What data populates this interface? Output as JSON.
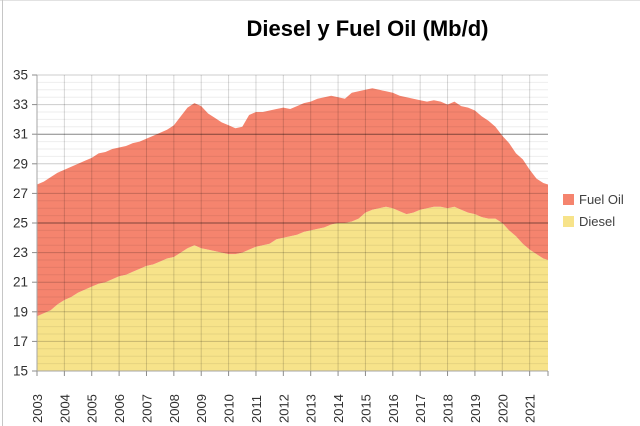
{
  "title": "Diesel y Fuel Oil (Mb/d)",
  "legend": {
    "items": [
      {
        "label": "Fuel Oil",
        "color": "#F5846E"
      },
      {
        "label": "Diesel",
        "color": "#F7E38A"
      }
    ]
  },
  "chart_data": {
    "type": "area",
    "stacked": true,
    "title": "Diesel y Fuel Oil (Mb/d)",
    "unit": "Mb/d",
    "legend_position": "right",
    "grid": true,
    "x": [
      2003.0,
      2003.25,
      2003.5,
      2003.75,
      2004.0,
      2004.25,
      2004.5,
      2004.75,
      2005.0,
      2005.25,
      2005.5,
      2005.75,
      2006.0,
      2006.25,
      2006.5,
      2006.75,
      2007.0,
      2007.25,
      2007.5,
      2007.75,
      2008.0,
      2008.25,
      2008.5,
      2008.75,
      2009.0,
      2009.25,
      2009.5,
      2009.75,
      2010.0,
      2010.25,
      2010.5,
      2010.75,
      2011.0,
      2011.25,
      2011.5,
      2011.75,
      2012.0,
      2012.25,
      2012.5,
      2012.75,
      2013.0,
      2013.25,
      2013.5,
      2013.75,
      2014.0,
      2014.25,
      2014.5,
      2014.75,
      2015.0,
      2015.25,
      2015.5,
      2015.75,
      2016.0,
      2016.25,
      2016.5,
      2016.75,
      2017.0,
      2017.25,
      2017.5,
      2017.75,
      2018.0,
      2018.25,
      2018.5,
      2018.75,
      2019.0,
      2019.25,
      2019.5,
      2019.75,
      2020.0,
      2020.25,
      2020.5,
      2020.75,
      2021.0,
      2021.25,
      2021.5,
      2021.67
    ],
    "series": [
      {
        "name": "Diesel",
        "color": "#F7E38A",
        "values": [
          18.7,
          18.9,
          19.1,
          19.5,
          19.8,
          20.0,
          20.3,
          20.5,
          20.7,
          20.9,
          21.0,
          21.2,
          21.4,
          21.5,
          21.7,
          21.9,
          22.1,
          22.2,
          22.4,
          22.6,
          22.7,
          23.0,
          23.3,
          23.5,
          23.3,
          23.2,
          23.1,
          23.0,
          22.9,
          22.9,
          23.0,
          23.2,
          23.4,
          23.5,
          23.6,
          23.9,
          24.0,
          24.1,
          24.2,
          24.4,
          24.5,
          24.6,
          24.7,
          24.9,
          25.0,
          25.0,
          25.1,
          25.3,
          25.7,
          25.9,
          26.0,
          26.1,
          26.0,
          25.8,
          25.6,
          25.7,
          25.9,
          26.0,
          26.1,
          26.1,
          26.0,
          26.1,
          25.9,
          25.7,
          25.6,
          25.4,
          25.3,
          25.3,
          25.0,
          24.5,
          24.1,
          23.6,
          23.2,
          22.9,
          22.6,
          22.5
        ]
      },
      {
        "name": "Fuel Oil",
        "color": "#F5846E",
        "values": [
          8.9,
          8.9,
          9.0,
          8.9,
          8.8,
          8.8,
          8.7,
          8.7,
          8.7,
          8.8,
          8.8,
          8.8,
          8.7,
          8.7,
          8.7,
          8.6,
          8.6,
          8.7,
          8.7,
          8.7,
          8.9,
          9.2,
          9.5,
          9.6,
          9.6,
          9.2,
          9.0,
          8.8,
          8.7,
          8.5,
          8.5,
          9.1,
          9.1,
          9.0,
          9.0,
          8.8,
          8.8,
          8.6,
          8.7,
          8.7,
          8.7,
          8.8,
          8.8,
          8.7,
          8.5,
          8.4,
          8.7,
          8.6,
          8.3,
          8.2,
          8.0,
          7.8,
          7.8,
          7.8,
          7.9,
          7.7,
          7.4,
          7.2,
          7.2,
          7.1,
          7.0,
          7.1,
          7.0,
          7.1,
          7.0,
          6.8,
          6.6,
          6.2,
          5.9,
          5.9,
          5.6,
          5.7,
          5.4,
          5.1,
          5.1,
          5.1
        ]
      }
    ],
    "y_axis": {
      "min": 15,
      "max": 35,
      "tick_step": 2,
      "minor_step": 0.5,
      "tick_labels": [
        "35",
        "33",
        "31",
        "29",
        "27",
        "25",
        "23",
        "21",
        "19",
        "17",
        "15"
      ],
      "dark_gridlines": [
        31,
        25
      ]
    },
    "x_axis": {
      "start": 2003.0,
      "end": 2021.67,
      "tick_labels": [
        "2003",
        "2004",
        "2005",
        "2006",
        "2007",
        "2008",
        "2009",
        "2010",
        "2011",
        "2012",
        "2013",
        "2014",
        "2015",
        "2016",
        "2017",
        "2018",
        "2019",
        "2020",
        "2021"
      ]
    }
  }
}
